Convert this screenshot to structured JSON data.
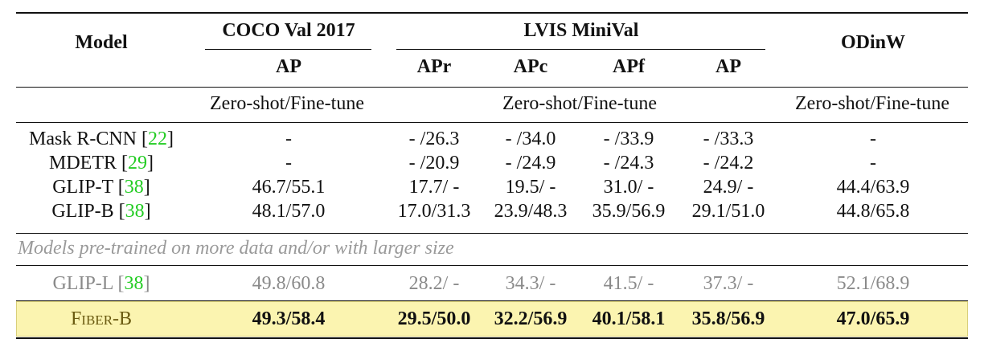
{
  "headers": {
    "model": "Model",
    "coco": "COCO Val 2017",
    "lvis": "LVIS MiniVal",
    "odinw": "ODinW",
    "coco_ap": "AP",
    "lvis_apr": "APr",
    "lvis_apc": "APc",
    "lvis_apf": "APf",
    "lvis_ap": "AP"
  },
  "settings": {
    "coco": "Zero-shot/Fine-tune",
    "lvis": "Zero-shot/Fine-tune",
    "odinw": "Zero-shot/Fine-tune"
  },
  "rows": [
    {
      "model": "Mask R-CNN",
      "cite": "22",
      "coco": "-",
      "apr": "- /26.3",
      "apc": "- /34.0",
      "apf": "- /33.9",
      "ap": "- /33.3",
      "odinw": "-"
    },
    {
      "model": "MDETR",
      "cite": "29",
      "coco": "-",
      "apr": "- /20.9",
      "apc": "- /24.9",
      "apf": "- /24.3",
      "ap": "- /24.2",
      "odinw": "-"
    },
    {
      "model": "GLIP-T",
      "cite": "38",
      "coco": "46.7/55.1",
      "apr": "17.7/ -",
      "apc": "19.5/ -",
      "apf": "31.0/ -",
      "ap": "24.9/ -",
      "odinw": "44.4/63.9"
    },
    {
      "model": "GLIP-B",
      "cite": "38",
      "coco": "48.1/57.0",
      "apr": "17.0/31.3",
      "apc": "23.9/48.3",
      "apf": "35.9/56.9",
      "ap": "29.1/51.0",
      "odinw": "44.8/65.8"
    }
  ],
  "note": "Models pre-trained on more data and/or with larger size",
  "large_row": {
    "model": "GLIP-L",
    "cite": "38",
    "coco": "49.8/60.8",
    "apr": "28.2/ -",
    "apc": "34.3/ -",
    "apf": "41.5/ -",
    "ap": "37.3/ -",
    "odinw": "52.1/68.9"
  },
  "ours_row": {
    "model": "Fiber-B",
    "coco": "49.3/58.4",
    "apr": "29.5/50.0",
    "apc": "32.2/56.9",
    "apf": "40.1/58.1",
    "ap": "35.8/56.9",
    "odinw": "47.0/65.9"
  },
  "colors": {
    "citation": "#22cc22",
    "highlight": "#fbf4b0",
    "muted": "#8a8a8a"
  }
}
